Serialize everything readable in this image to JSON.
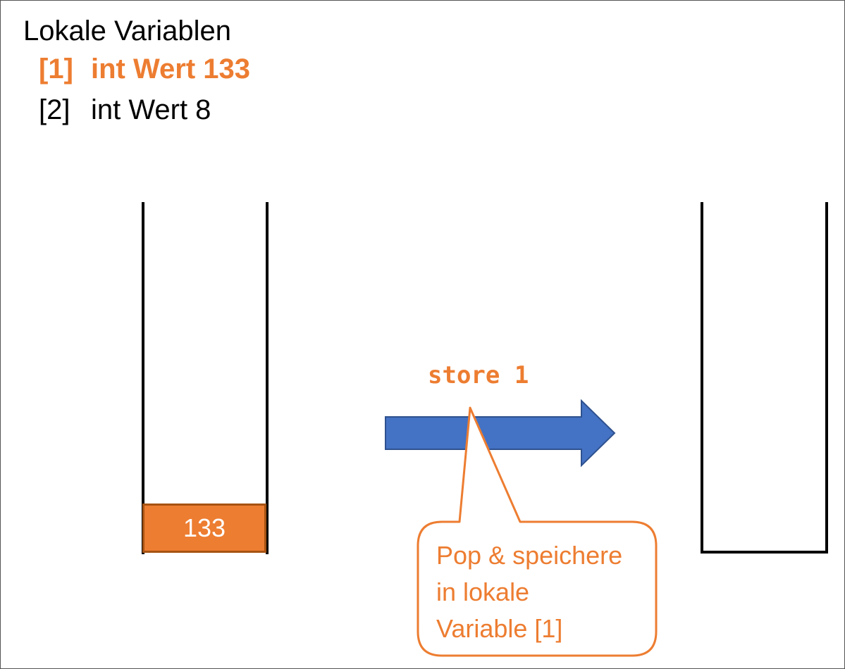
{
  "local_vars": {
    "title": "Lokale Variablen",
    "items": [
      {
        "index": "[1]",
        "text": "int Wert 133",
        "highlighted": true
      },
      {
        "index": "[2]",
        "text": "int Wert 8",
        "highlighted": false
      }
    ]
  },
  "stack_before": {
    "cells": [
      "133"
    ]
  },
  "stack_after": {
    "cells": []
  },
  "instruction": "store 1",
  "callout": {
    "lines": [
      "Pop & speichere",
      "in lokale",
      "Variable [1]"
    ]
  },
  "colors": {
    "accent": "#ED7D31",
    "arrow": "#4472C4",
    "cell_border": "#A65312"
  }
}
